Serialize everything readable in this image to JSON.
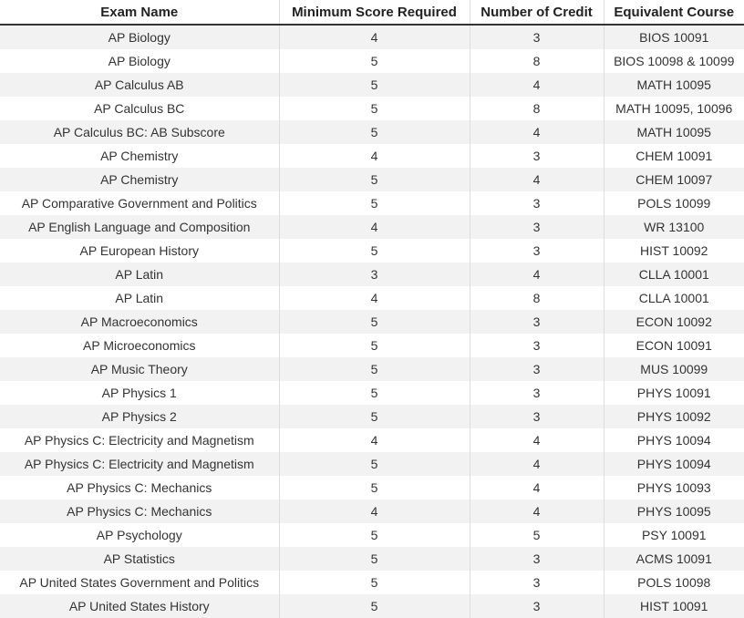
{
  "table": {
    "header": [
      "Exam Name",
      "Minimum Score Required",
      "Number of Credit",
      "Equivalent Course"
    ],
    "rows": [
      [
        "AP Biology",
        4,
        3,
        "BIOS 10091"
      ],
      [
        "AP Biology",
        5,
        8,
        "BIOS 10098 & 10099"
      ],
      [
        "AP Calculus AB",
        5,
        4,
        "MATH 10095"
      ],
      [
        "AP Calculus BC",
        5,
        8,
        "MATH 10095, 10096"
      ],
      [
        "AP Calculus BC: AB Subscore",
        5,
        4,
        "MATH 10095"
      ],
      [
        "AP Chemistry",
        4,
        3,
        "CHEM 10091"
      ],
      [
        "AP Chemistry",
        5,
        4,
        "CHEM 10097"
      ],
      [
        "AP Comparative Government and Politics",
        5,
        3,
        "POLS 10099"
      ],
      [
        "AP English Language and Composition",
        4,
        3,
        "WR 13100"
      ],
      [
        "AP European History",
        5,
        3,
        "HIST 10092"
      ],
      [
        "AP Latin",
        3,
        4,
        "CLLA 10001"
      ],
      [
        "AP Latin",
        4,
        8,
        "CLLA 10001"
      ],
      [
        "AP Macroeconomics",
        5,
        3,
        "ECON 10092"
      ],
      [
        "AP Microeconomics",
        5,
        3,
        "ECON 10091"
      ],
      [
        "AP Music Theory",
        5,
        3,
        "MUS 10099"
      ],
      [
        "AP Physics 1",
        5,
        3,
        "PHYS 10091"
      ],
      [
        "AP Physics 2",
        5,
        3,
        "PHYS 10092"
      ],
      [
        "AP Physics C: Electricity and Magnetism",
        4,
        4,
        "PHYS 10094"
      ],
      [
        "AP Physics C: Electricity and Magnetism",
        5,
        4,
        "PHYS 10094"
      ],
      [
        "AP Physics C: Mechanics",
        5,
        4,
        "PHYS 10093"
      ],
      [
        "AP Physics C: Mechanics",
        4,
        4,
        "PHYS 10095"
      ],
      [
        "AP Psychology",
        5,
        5,
        "PSY 10091"
      ],
      [
        "AP Statistics",
        5,
        3,
        "ACMS 10091"
      ],
      [
        "AP United States Government and Politics",
        5,
        3,
        "POLS 10098"
      ],
      [
        "AP United States History",
        5,
        3,
        "HIST 10091"
      ]
    ]
  }
}
